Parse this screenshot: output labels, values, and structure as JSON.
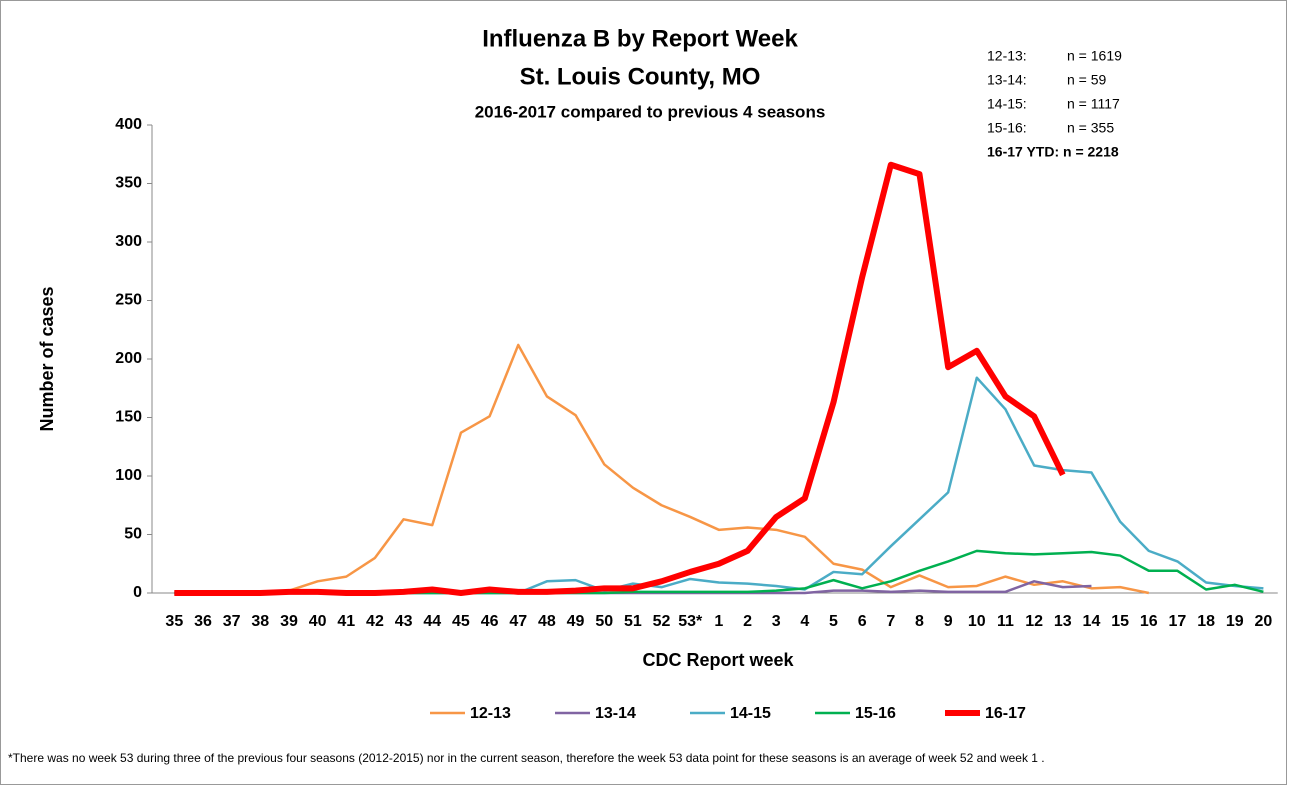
{
  "chart_data": {
    "type": "line",
    "title": "Influenza B by Report Week",
    "subtitle": "St. Louis County, MO",
    "subtitle2": "2016-2017 compared to previous 4 seasons",
    "y_label": "Number of cases",
    "x_label": "CDC Report week",
    "counts": [
      [
        "12-13:",
        "n = 1619"
      ],
      [
        "13-14:",
        "n = 59"
      ],
      [
        "14-15:",
        "n = 1117"
      ],
      [
        "15-16:",
        "n = 355"
      ],
      [
        "16-17 YTD:",
        "n = 2218"
      ]
    ],
    "footnote": "*There was no week 53 during three of the previous four seasons (2012-2015) nor in the current season, therefore the week 53 data point for these seasons is an average of week 52 and week 1 .",
    "categories": [
      "35",
      "36",
      "37",
      "38",
      "39",
      "40",
      "41",
      "42",
      "43",
      "44",
      "45",
      "46",
      "47",
      "48",
      "49",
      "50",
      "51",
      "52",
      "53*",
      "1",
      "2",
      "3",
      "4",
      "5",
      "6",
      "7",
      "8",
      "9",
      "10",
      "11",
      "12",
      "13",
      "14",
      "15",
      "16",
      "17",
      "18",
      "19",
      "20"
    ],
    "ylim": [
      0,
      400
    ],
    "yticks": [
      0,
      50,
      100,
      150,
      200,
      250,
      300,
      350,
      400
    ],
    "grid": false,
    "legend": "bottom",
    "series": [
      {
        "name": "12-13",
        "color": "#f79646",
        "line_width": 2.5,
        "values": [
          0,
          0,
          0,
          1,
          2,
          10,
          14,
          30,
          63,
          58,
          137,
          151,
          212,
          168,
          152,
          110,
          90,
          75,
          65,
          54,
          56,
          54,
          48,
          25,
          20,
          5,
          15,
          5,
          6,
          14,
          7,
          10,
          4,
          5,
          0,
          null,
          null,
          null,
          null
        ]
      },
      {
        "name": "13-14",
        "color": "#8064a2",
        "line_width": 2.5,
        "values": [
          0,
          0,
          0,
          0,
          0,
          0,
          0,
          0,
          0,
          0,
          0,
          0,
          0,
          0,
          0,
          0,
          0,
          0,
          0,
          0,
          0,
          0,
          0,
          2,
          2,
          1,
          2,
          1,
          1,
          1,
          10,
          5,
          6,
          null,
          null,
          null,
          null,
          null,
          null
        ]
      },
      {
        "name": "14-15",
        "color": "#4bacc6",
        "line_width": 2.5,
        "values": [
          0,
          0,
          0,
          0,
          0,
          0,
          0,
          0,
          0,
          0,
          0,
          0,
          0,
          10,
          11,
          2,
          8,
          5,
          12,
          9,
          8,
          6,
          3,
          18,
          16,
          40,
          63,
          86,
          184,
          157,
          109,
          105,
          103,
          61,
          36,
          27,
          9,
          6,
          4
        ]
      },
      {
        "name": "15-16",
        "color": "#00b050",
        "line_width": 2.5,
        "values": [
          0,
          0,
          0,
          0,
          0,
          0,
          0,
          0,
          0,
          0,
          0,
          0,
          0,
          0,
          0,
          0,
          1,
          1,
          1,
          1,
          1,
          2,
          4,
          11,
          4,
          10,
          19,
          27,
          36,
          34,
          33,
          34,
          35,
          32,
          19,
          19,
          3,
          7,
          1
        ]
      },
      {
        "name": "16-17",
        "color": "#ff0000",
        "line_width": 6,
        "values": [
          0,
          0,
          0,
          0,
          1,
          1,
          0,
          0,
          1,
          3,
          0,
          3,
          1,
          1,
          2,
          4,
          4,
          10,
          18,
          25,
          36,
          65,
          81,
          163,
          270,
          366,
          358,
          193,
          207,
          168,
          151,
          101,
          null,
          null,
          null,
          null,
          null,
          null,
          null
        ]
      }
    ]
  }
}
